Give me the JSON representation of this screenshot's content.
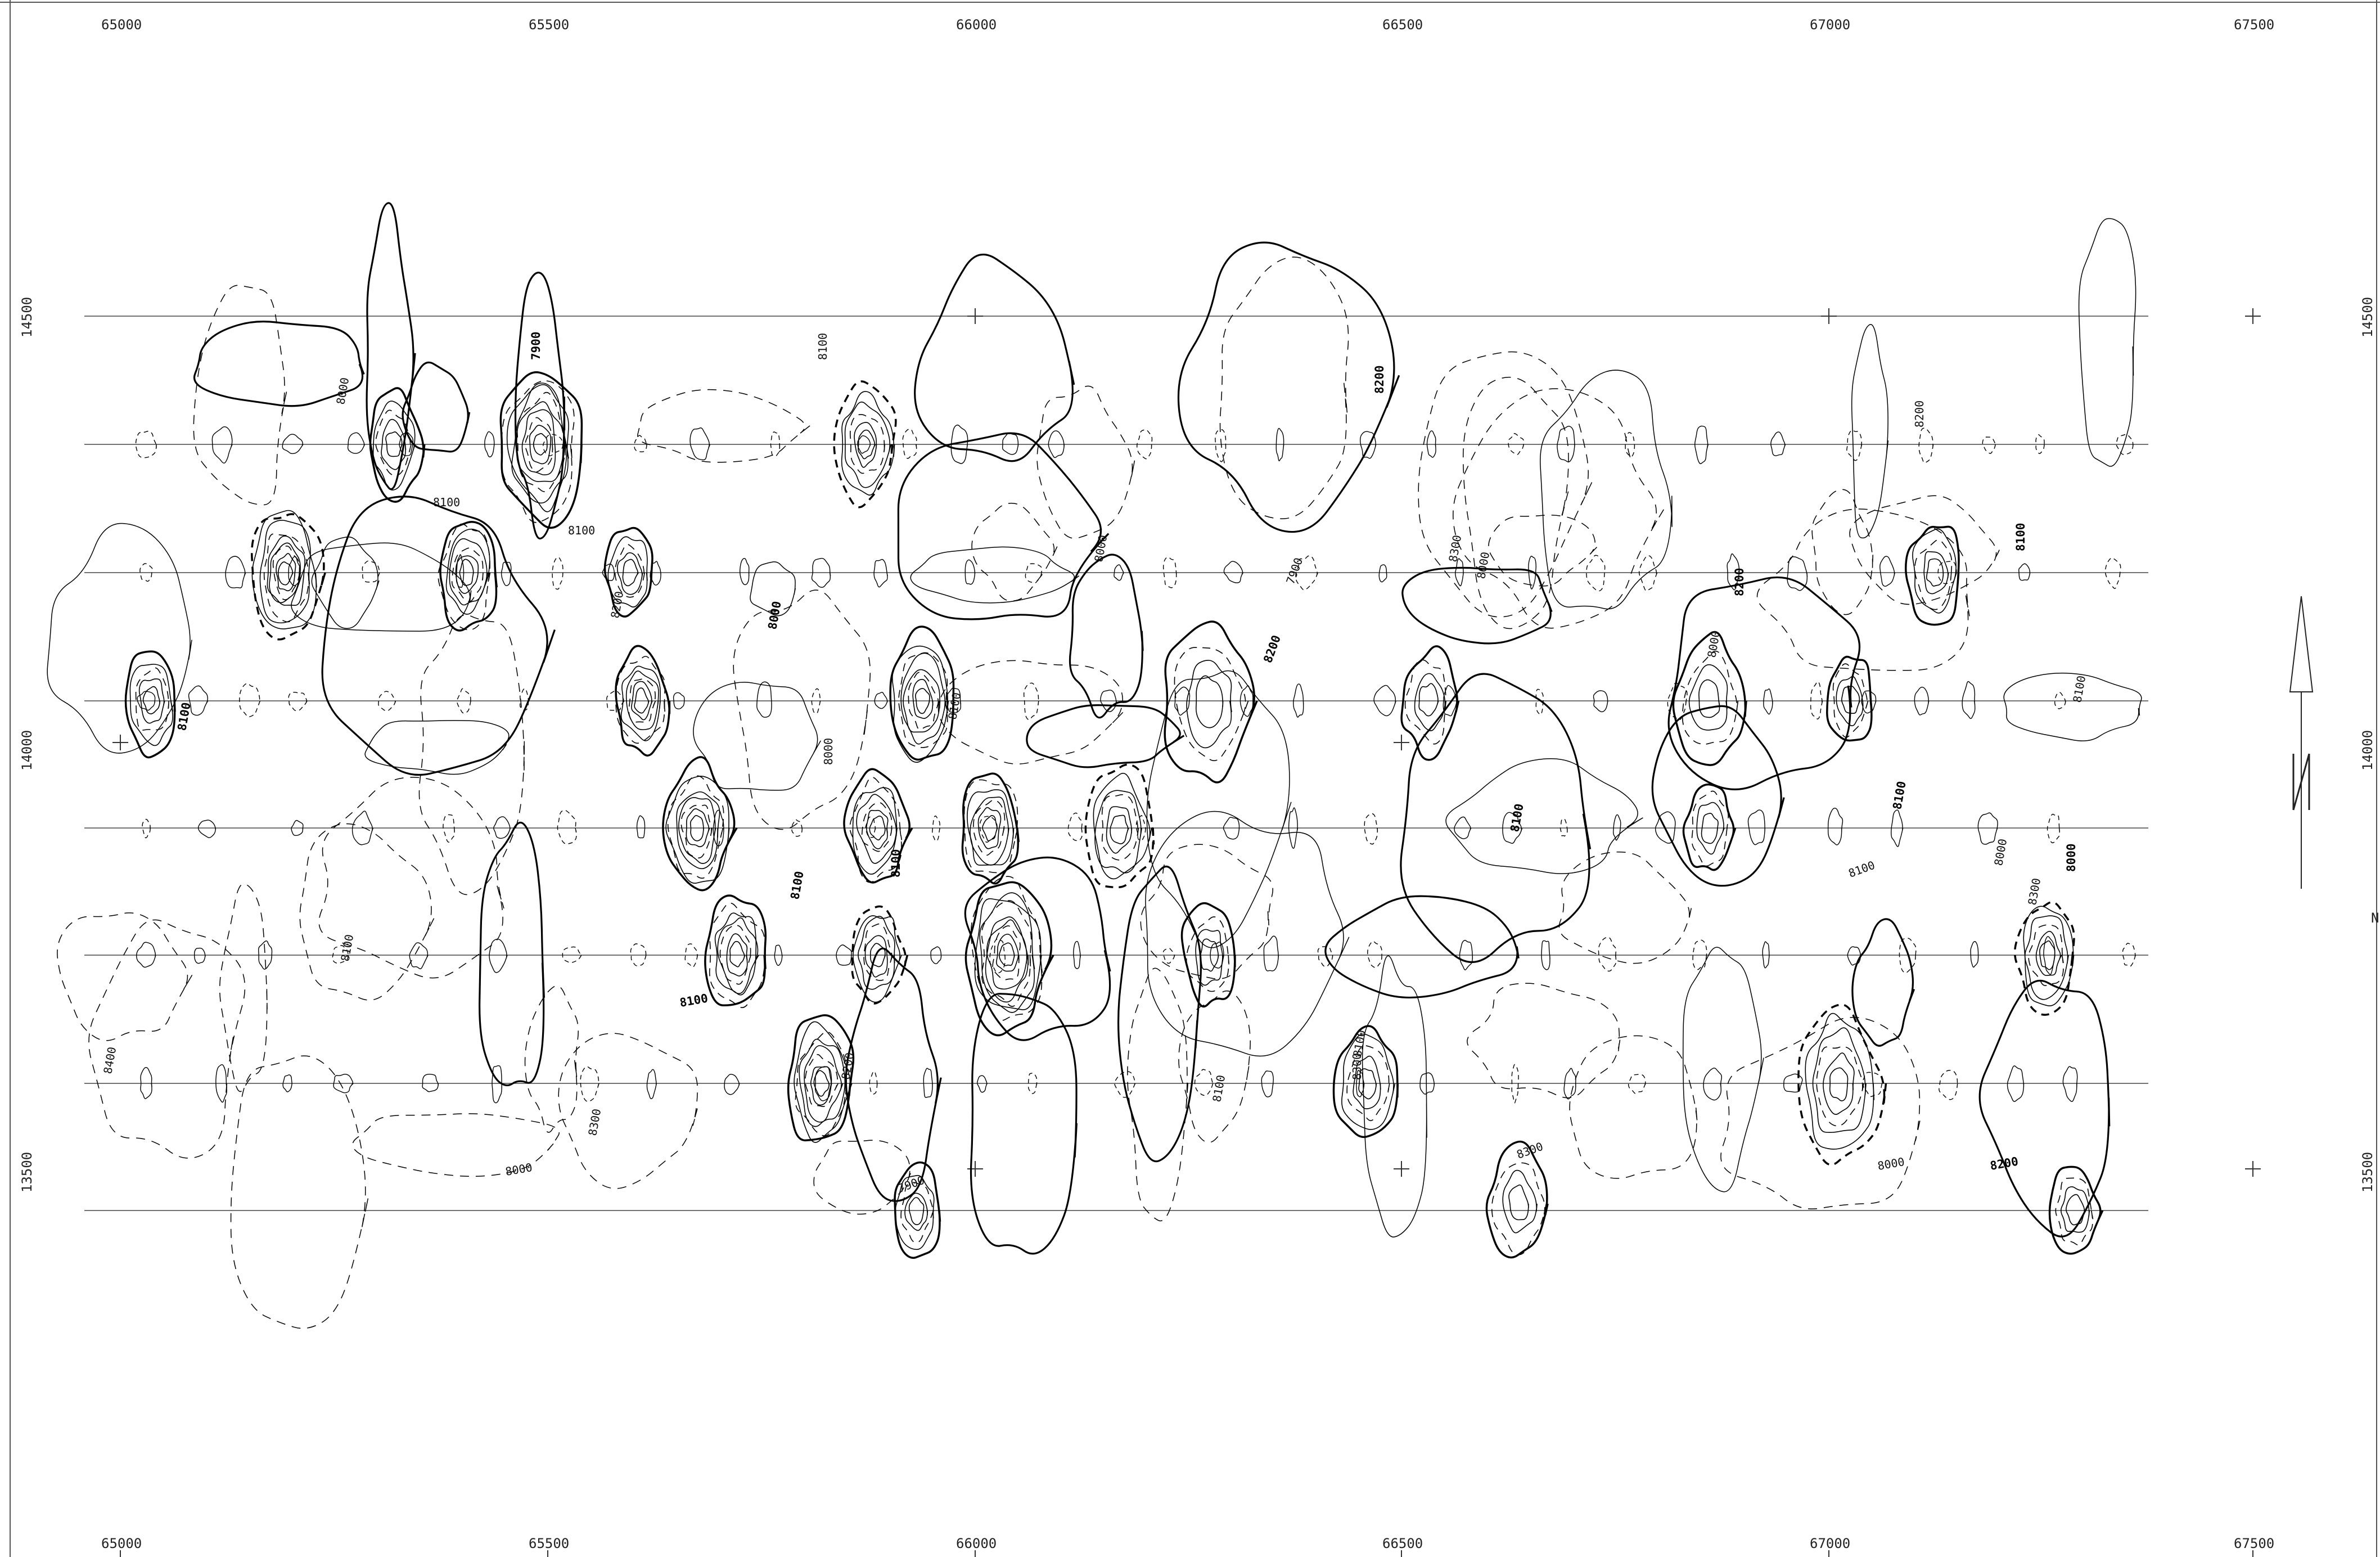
{
  "map": {
    "easting_labels": [
      "65000",
      "65500",
      "66000",
      "66500",
      "67000",
      "67500"
    ],
    "northing_labels": [
      "14500",
      "14000",
      "13500"
    ],
    "contour_labels": [
      "8100",
      "8000",
      "8100",
      "7900",
      "8100",
      "8200",
      "8000",
      "8100",
      "8000",
      "8100",
      "8100",
      "8000",
      "8200",
      "8100",
      "8300",
      "8200",
      "8000",
      "7900",
      "8100",
      "8300",
      "8000",
      "8200",
      "8100",
      "8000",
      "8100",
      "8200",
      "8000",
      "8100",
      "8400",
      "8300",
      "8100",
      "8200",
      "7900",
      "8100",
      "8000",
      "8100",
      "8200",
      "8300",
      "8100",
      "8000",
      "8300",
      "8100"
    ],
    "north_arrow_label": "N",
    "contour_legend": {
      "major_style": "solid-heavy",
      "minor_style": "solid-thin",
      "intermediate_style": "dashed"
    },
    "colors": {
      "line": "#000000",
      "grid": "#444444",
      "background": "#ffffff"
    }
  }
}
